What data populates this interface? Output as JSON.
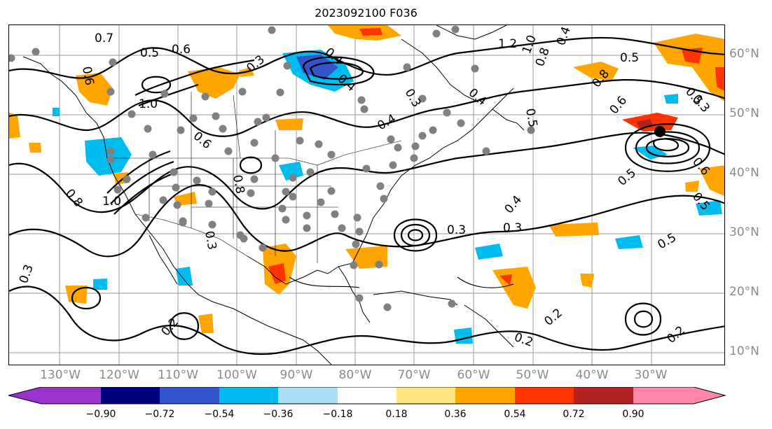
{
  "title": "2023092100 F036",
  "latitude_labels": [
    "60°N",
    "50°N",
    "40°N",
    "30°N",
    "20°N",
    "10°N"
  ],
  "longitude_labels": [
    "130°W",
    "120°W",
    "110°W",
    "100°W",
    "90°W",
    "80°W",
    "70°W",
    "60°W",
    "50°W",
    "40°W",
    "30°W"
  ],
  "contour_labels": [
    "0.7",
    "0.5",
    "0.6",
    "0.3",
    "0.4",
    "0.4",
    "1.2",
    "1.0",
    "0.8",
    "0.4",
    "0.5",
    "0.6",
    "1.0",
    "0.6",
    "0.3",
    "0.4",
    "0.4",
    "0.5",
    "0.8",
    "0.6",
    "0.5",
    "0.8",
    "1.0",
    "0.8",
    "0.3",
    "0.3",
    "0.3",
    "0.4",
    "0.5",
    "0.3",
    "0.5",
    "0.2",
    "0.2",
    "0.2",
    "0.2",
    "0.5",
    "0.6",
    "0.3"
  ],
  "colorbar": {
    "ticks": [
      "−0.90",
      "−0.72",
      "−0.54",
      "−0.36",
      "−0.18",
      "0.18",
      "0.36",
      "0.54",
      "0.72",
      "0.90"
    ],
    "colors": [
      "#9933cc",
      "#000080",
      "#3355cc",
      "#00bbee",
      "#aaddf7",
      "#ffffff",
      "#ffe680",
      "#ffa500",
      "#ff3300",
      "#b22222",
      "#ff88aa"
    ]
  },
  "shading_colors": {
    "orange": "#ffa500",
    "red": "#ff3300",
    "dark_red": "#b22222",
    "cyan": "#00bbee",
    "blue": "#3355cc",
    "light_blue": "#aaddf7"
  },
  "icons": {
    "markers": "gray-station-dot",
    "low_center": "black-dot"
  }
}
